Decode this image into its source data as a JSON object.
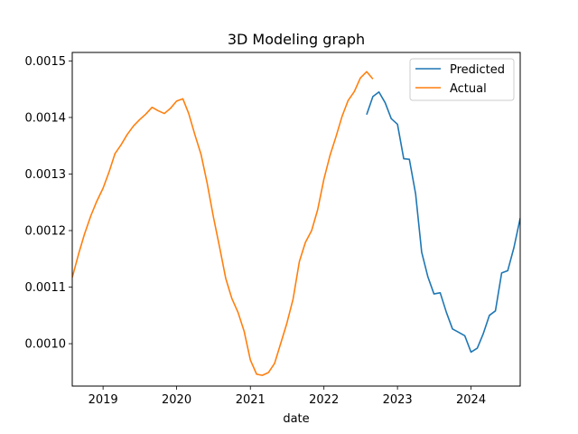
{
  "chart_data": {
    "type": "line",
    "title": "3D Modeling graph",
    "xlabel": "date",
    "ylabel": "",
    "x_ticks": [
      "2019",
      "2020",
      "2021",
      "2022",
      "2023",
      "2024"
    ],
    "y_ticks": [
      "0.0010",
      "0.0011",
      "0.0012",
      "0.0013",
      "0.0014",
      "0.0015"
    ],
    "xlim": [
      "2018-08-01",
      "2024-09-01"
    ],
    "ylim": [
      0.000925,
      0.001515
    ],
    "grid": false,
    "legend_position": "top-right",
    "series": [
      {
        "name": "Predicted",
        "color": "#1f77b4",
        "points": [
          [
            "2022-08-01",
            0.001405
          ],
          [
            "2022-09-01",
            0.001437
          ],
          [
            "2022-10-01",
            0.001445
          ],
          [
            "2022-11-01",
            0.001426
          ],
          [
            "2022-12-01",
            0.001398
          ],
          [
            "2023-01-01",
            0.001388
          ],
          [
            "2023-02-01",
            0.001327
          ],
          [
            "2023-03-01",
            0.001326
          ],
          [
            "2023-04-01",
            0.001265
          ],
          [
            "2023-05-01",
            0.001162
          ],
          [
            "2023-06-01",
            0.001118
          ],
          [
            "2023-07-01",
            0.001088
          ],
          [
            "2023-08-01",
            0.00109
          ],
          [
            "2023-09-01",
            0.001055
          ],
          [
            "2023-10-01",
            0.001026
          ],
          [
            "2023-11-01",
            0.00102
          ],
          [
            "2023-12-01",
            0.001014
          ],
          [
            "2024-01-01",
            0.000985
          ],
          [
            "2024-02-01",
            0.000992
          ],
          [
            "2024-03-01",
            0.001017
          ],
          [
            "2024-04-01",
            0.00105
          ],
          [
            "2024-05-01",
            0.001058
          ],
          [
            "2024-06-01",
            0.001125
          ],
          [
            "2024-07-01",
            0.001129
          ],
          [
            "2024-08-01",
            0.00117
          ],
          [
            "2024-09-01",
            0.001222
          ]
        ]
      },
      {
        "name": "Actual",
        "color": "#ff7f0e",
        "points": [
          [
            "2018-08-01",
            0.001117
          ],
          [
            "2018-09-01",
            0.001158
          ],
          [
            "2018-10-01",
            0.001194
          ],
          [
            "2018-11-01",
            0.001226
          ],
          [
            "2018-12-01",
            0.001252
          ],
          [
            "2019-01-01",
            0.001275
          ],
          [
            "2019-02-01",
            0.001305
          ],
          [
            "2019-03-01",
            0.001336
          ],
          [
            "2019-04-01",
            0.001352
          ],
          [
            "2019-05-01",
            0.00137
          ],
          [
            "2019-06-01",
            0.001385
          ],
          [
            "2019-07-01",
            0.001396
          ],
          [
            "2019-08-01",
            0.001406
          ],
          [
            "2019-09-01",
            0.001418
          ],
          [
            "2019-10-01",
            0.001412
          ],
          [
            "2019-11-01",
            0.001407
          ],
          [
            "2019-12-01",
            0.001416
          ],
          [
            "2020-01-01",
            0.001429
          ],
          [
            "2020-02-01",
            0.001433
          ],
          [
            "2020-03-01",
            0.001407
          ],
          [
            "2020-04-01",
            0.001369
          ],
          [
            "2020-05-01",
            0.001335
          ],
          [
            "2020-06-01",
            0.001283
          ],
          [
            "2020-07-01",
            0.001225
          ],
          [
            "2020-08-01",
            0.001171
          ],
          [
            "2020-09-01",
            0.001115
          ],
          [
            "2020-10-01",
            0.00108
          ],
          [
            "2020-11-01",
            0.001055
          ],
          [
            "2020-12-01",
            0.001022
          ],
          [
            "2021-01-01",
            0.000971
          ],
          [
            "2021-02-01",
            0.000946
          ],
          [
            "2021-03-01",
            0.000944
          ],
          [
            "2021-04-01",
            0.000949
          ],
          [
            "2021-05-01",
            0.000965
          ],
          [
            "2021-06-01",
            0.001001
          ],
          [
            "2021-07-01",
            0.001036
          ],
          [
            "2021-08-01",
            0.001079
          ],
          [
            "2021-09-01",
            0.001145
          ],
          [
            "2021-10-01",
            0.001179
          ],
          [
            "2021-11-01",
            0.0012
          ],
          [
            "2021-12-01",
            0.001237
          ],
          [
            "2022-01-01",
            0.001291
          ],
          [
            "2022-02-01",
            0.001334
          ],
          [
            "2022-03-01",
            0.001365
          ],
          [
            "2022-04-01",
            0.001402
          ],
          [
            "2022-05-01",
            0.00143
          ],
          [
            "2022-06-01",
            0.001446
          ],
          [
            "2022-07-01",
            0.00147
          ],
          [
            "2022-08-01",
            0.001481
          ],
          [
            "2022-09-01",
            0.001468
          ]
        ]
      }
    ]
  }
}
